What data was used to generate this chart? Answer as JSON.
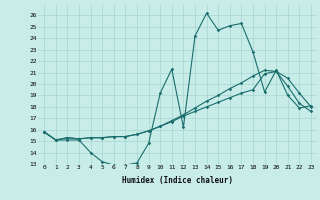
{
  "xlabel": "Humidex (Indice chaleur)",
  "background_color": "#c8ece8",
  "grid_color": "#a8d4d0",
  "line_color": "#1a6e6e",
  "ylim": [
    13,
    27
  ],
  "xlim": [
    -0.5,
    23.5
  ],
  "yticks": [
    13,
    14,
    15,
    16,
    17,
    18,
    19,
    20,
    21,
    22,
    23,
    24,
    25,
    26
  ],
  "xticks": [
    0,
    1,
    2,
    3,
    4,
    5,
    6,
    7,
    8,
    9,
    10,
    11,
    12,
    13,
    14,
    15,
    16,
    17,
    18,
    19,
    20,
    21,
    22,
    23
  ],
  "line1_x": [
    0,
    1,
    2,
    3,
    4,
    5,
    6,
    7,
    8,
    9,
    10,
    11,
    12,
    13,
    14,
    15,
    16,
    17,
    18,
    19,
    20,
    21,
    22,
    23
  ],
  "line1_y": [
    15.8,
    15.1,
    15.1,
    15.1,
    14.0,
    13.2,
    12.9,
    12.9,
    13.1,
    14.8,
    19.2,
    21.3,
    16.2,
    24.2,
    26.2,
    24.7,
    25.1,
    25.3,
    22.8,
    19.3,
    21.2,
    19.0,
    17.9,
    18.1
  ],
  "line2_x": [
    0,
    1,
    2,
    3,
    4,
    5,
    6,
    7,
    8,
    9,
    10,
    11,
    12,
    13,
    14,
    15,
    16,
    17,
    18,
    19,
    20,
    21,
    22,
    23
  ],
  "line2_y": [
    15.8,
    15.1,
    15.3,
    15.2,
    15.3,
    15.3,
    15.4,
    15.4,
    15.6,
    15.9,
    16.3,
    16.7,
    17.2,
    17.6,
    18.0,
    18.4,
    18.8,
    19.2,
    19.5,
    20.9,
    21.1,
    20.5,
    19.2,
    18.0
  ],
  "line3_x": [
    0,
    1,
    2,
    3,
    4,
    5,
    6,
    7,
    8,
    9,
    10,
    11,
    12,
    13,
    14,
    15,
    16,
    17,
    18,
    19,
    20,
    21,
    22,
    23
  ],
  "line3_y": [
    15.8,
    15.1,
    15.3,
    15.2,
    15.3,
    15.3,
    15.4,
    15.4,
    15.6,
    15.9,
    16.3,
    16.8,
    17.3,
    17.9,
    18.5,
    19.0,
    19.6,
    20.1,
    20.7,
    21.2,
    21.1,
    19.8,
    18.3,
    17.6
  ]
}
